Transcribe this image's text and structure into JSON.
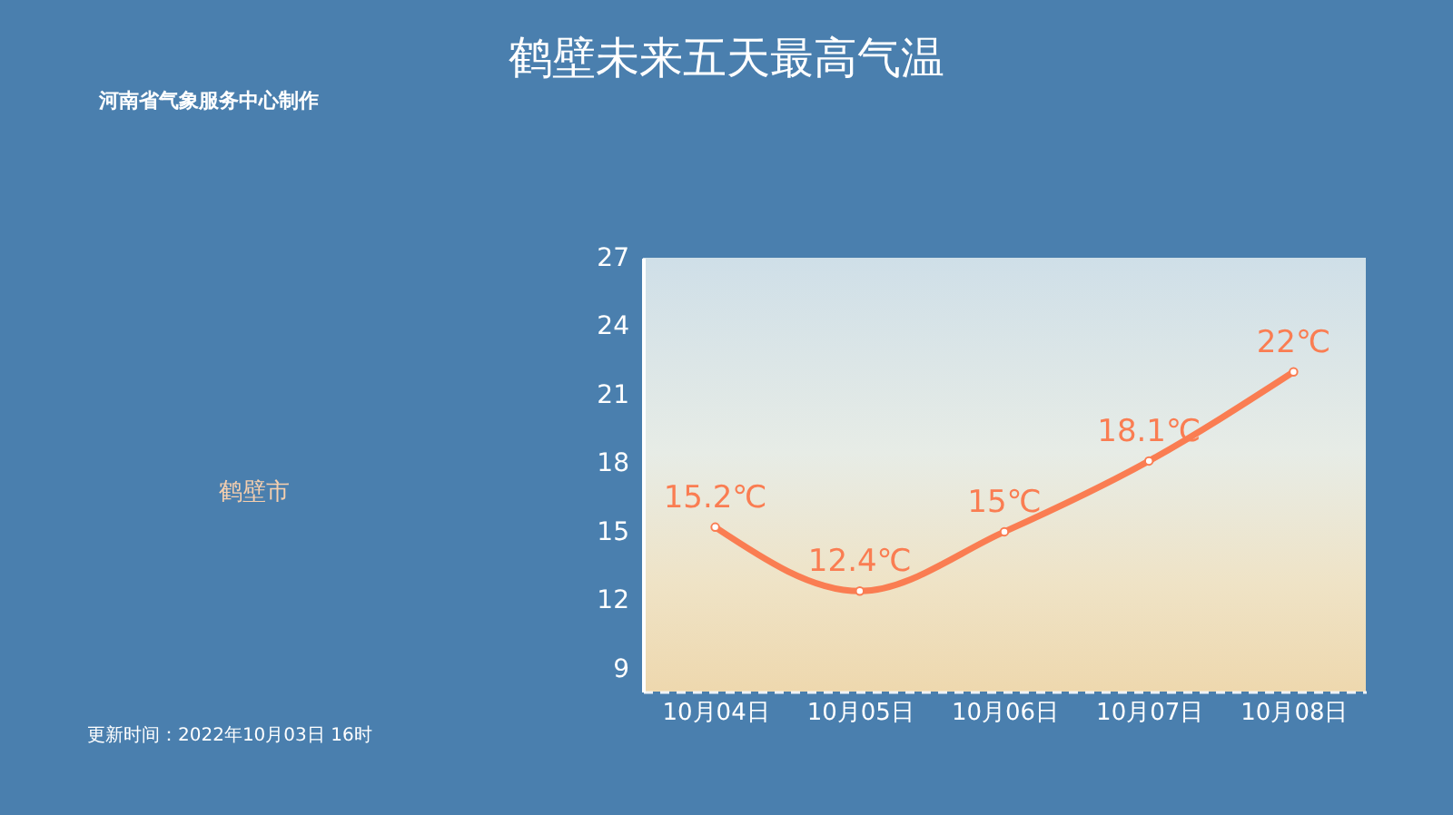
{
  "chart_data": {
    "type": "line",
    "title": "鹤壁未来五天最高气温",
    "annotations": [
      "河南省气象服务中心制作",
      "鹤壁市",
      "更新时间：2022年10月03日 16时"
    ],
    "categories": [
      "10月04日",
      "10月05日",
      "10月06日",
      "10月07日",
      "10月08日"
    ],
    "series": [
      {
        "color": "#fa7d52",
        "values": [
          15.2,
          12.4,
          15,
          18.1,
          22
        ],
        "value_labels": [
          "15.2℃",
          "12.4℃",
          "15℃",
          "18.1℃",
          "22℃"
        ]
      }
    ],
    "ylim": [
      8,
      27
    ],
    "yticks": [
      9,
      12,
      15,
      18,
      21,
      24,
      27
    ],
    "grid": false,
    "marker": "circle",
    "line_style": "solid"
  }
}
